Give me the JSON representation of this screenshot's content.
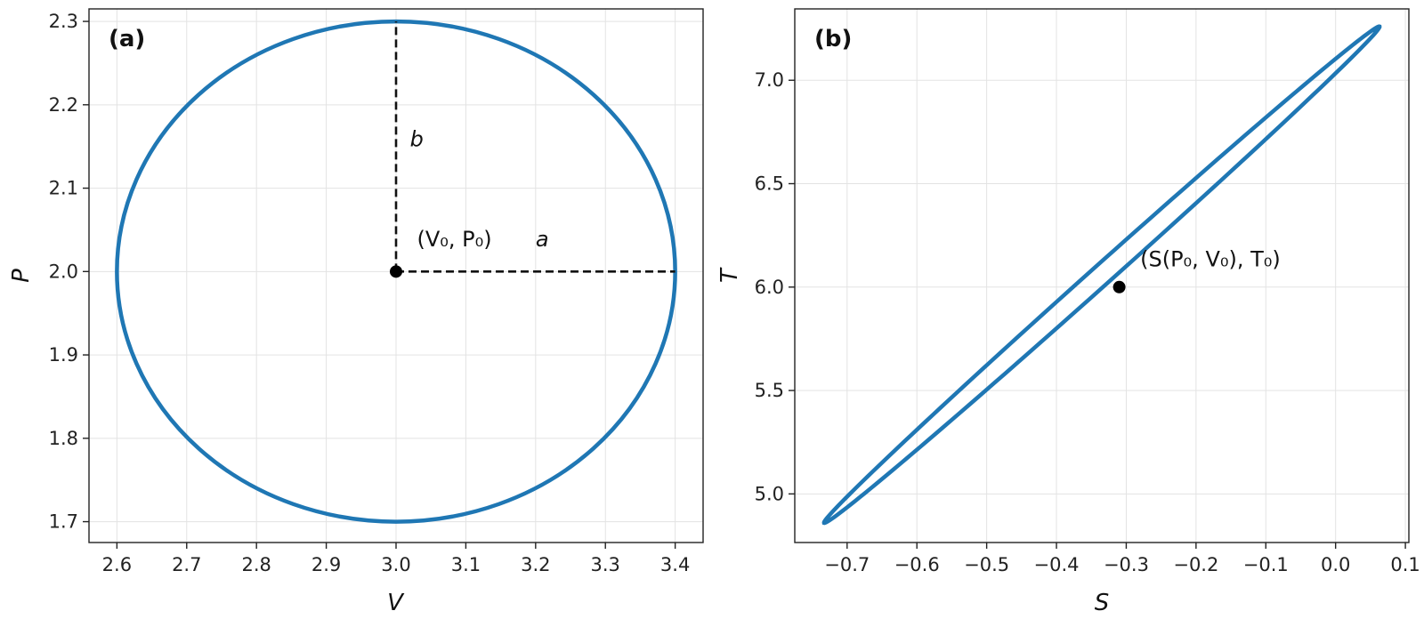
{
  "chart_data": [
    {
      "panel": "(a)",
      "type": "line",
      "xlabel": "V",
      "ylabel": "P",
      "xlim": [
        2.56,
        3.44
      ],
      "ylim": [
        1.675,
        2.315
      ],
      "xticks": [
        2.6,
        2.7,
        2.8,
        2.9,
        3.0,
        3.1,
        3.2,
        3.3,
        3.4
      ],
      "xtick_labels": [
        "2.6",
        "2.7",
        "2.8",
        "2.9",
        "3.0",
        "3.1",
        "3.2",
        "3.3",
        "3.4"
      ],
      "yticks": [
        1.7,
        1.8,
        1.9,
        2.0,
        2.1,
        2.2,
        2.3
      ],
      "ytick_labels": [
        "1.7",
        "1.8",
        "1.9",
        "2.0",
        "2.1",
        "2.2",
        "2.3"
      ],
      "grid": true,
      "ellipse": {
        "center": [
          3.0,
          2.0
        ],
        "a": 0.4,
        "b": 0.3,
        "color": "#1f77b4"
      },
      "center_point": [
        3.0,
        2.0
      ],
      "dashed_lines": [
        {
          "from": [
            3.0,
            2.0
          ],
          "to": [
            3.0,
            2.3
          ]
        },
        {
          "from": [
            3.0,
            2.0
          ],
          "to": [
            3.4,
            2.0
          ]
        }
      ],
      "annotations": [
        {
          "text": "(V₀, P₀)",
          "at": [
            3.03,
            2.03
          ]
        },
        {
          "text": "a",
          "at": [
            3.2,
            2.03
          ]
        },
        {
          "text": "b",
          "at": [
            3.02,
            2.15
          ]
        }
      ]
    },
    {
      "panel": "(b)",
      "type": "line",
      "xlabel": "S",
      "ylabel": "T",
      "xlim": [
        -0.775,
        0.105
      ],
      "ylim": [
        4.765,
        7.345
      ],
      "xticks": [
        -0.7,
        -0.6,
        -0.5,
        -0.4,
        -0.3,
        -0.2,
        -0.1,
        0.0,
        0.1
      ],
      "xtick_labels": [
        "−0.7",
        "−0.6",
        "−0.5",
        "−0.4",
        "−0.3",
        "−0.2",
        "−0.1",
        "0.0",
        "0.1"
      ],
      "yticks": [
        5.0,
        5.5,
        6.0,
        6.5,
        7.0
      ],
      "ytick_labels": [
        "5.0",
        "5.5",
        "6.0",
        "6.5",
        "7.0"
      ],
      "grid": true,
      "loop": {
        "center": [
          -0.335,
          6.06
        ],
        "major_end": [
          0.063,
          7.26
        ],
        "minor_point": [
          -0.35,
          5.95
        ],
        "color": "#1f77b4"
      },
      "center_point": [
        -0.31,
        6.0
      ],
      "annotations": [
        {
          "text": "(S(P₀, V₀), T₀)",
          "at": [
            -0.28,
            6.1
          ]
        }
      ]
    }
  ]
}
